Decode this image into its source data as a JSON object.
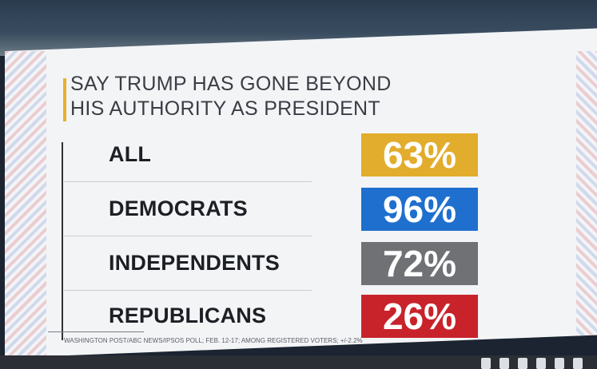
{
  "chart_data": {
    "type": "bar",
    "title": "SAY TRUMP HAS GONE BEYOND HIS AUTHORITY AS PRESIDENT",
    "title_lines": [
      "SAY TRUMP HAS GONE BEYOND",
      "HIS AUTHORITY AS PRESIDENT"
    ],
    "categories": [
      "ALL",
      "DEMOCRATS",
      "INDEPENDENTS",
      "REPUBLICANS"
    ],
    "values": [
      63,
      96,
      72,
      26
    ],
    "value_labels": [
      "63%",
      "96%",
      "72%",
      "26%"
    ],
    "colors": [
      "#e2ac2c",
      "#1f6fcf",
      "#6f7174",
      "#c8232b"
    ],
    "source": "WASHINGTON POST/ABC NEWS/IPSOS POLL; FEB. 12-17; AMONG REGISTERED VOTERS; +/-2.2%"
  }
}
